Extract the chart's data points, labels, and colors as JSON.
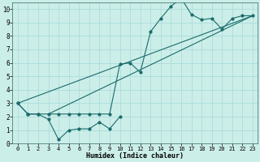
{
  "xlabel": "Humidex (Indice chaleur)",
  "ylabel": "",
  "xlim": [
    -0.5,
    23.5
  ],
  "ylim": [
    0,
    10.5
  ],
  "background_color": "#cceee8",
  "line_color": "#1a6b6b",
  "grid_color": "#aadddd",
  "line1_x": [
    0,
    1,
    2,
    3,
    4,
    5,
    6,
    7,
    8,
    9,
    10
  ],
  "line1_y": [
    3.0,
    2.2,
    2.2,
    1.8,
    0.3,
    1.0,
    1.1,
    1.1,
    1.6,
    1.1,
    2.0
  ],
  "line2_x": [
    0,
    1,
    2,
    3,
    4,
    5,
    6,
    7,
    8,
    9,
    10,
    11,
    12,
    13,
    14,
    15,
    16,
    17,
    18,
    19,
    20,
    21,
    22,
    23
  ],
  "line2_y": [
    3.0,
    2.2,
    2.2,
    2.2,
    2.2,
    2.2,
    2.2,
    2.2,
    2.2,
    2.2,
    5.9,
    6.0,
    5.3,
    8.3,
    9.3,
    10.2,
    10.8,
    9.6,
    9.2,
    9.3,
    8.5,
    9.3,
    9.5,
    9.5
  ],
  "line3_x": [
    0,
    23
  ],
  "line3_y": [
    3.0,
    9.5
  ],
  "line4_x": [
    3,
    23
  ],
  "line4_y": [
    2.2,
    9.5
  ],
  "yticks": [
    0,
    1,
    2,
    3,
    4,
    5,
    6,
    7,
    8,
    9,
    10
  ],
  "xticks": [
    0,
    1,
    2,
    3,
    4,
    5,
    6,
    7,
    8,
    9,
    10,
    11,
    12,
    13,
    14,
    15,
    16,
    17,
    18,
    19,
    20,
    21,
    22,
    23
  ]
}
